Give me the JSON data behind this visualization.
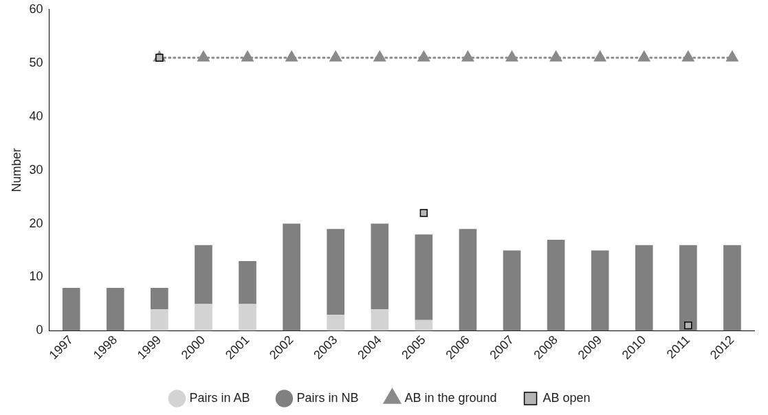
{
  "chart_data": {
    "type": "bar",
    "stacked": true,
    "ylabel": "Number",
    "ylim": [
      0,
      60
    ],
    "yticks": [
      0,
      10,
      20,
      30,
      40,
      50,
      60
    ],
    "grid": false,
    "legend": "bottom",
    "categories": [
      "1997",
      "1998",
      "1999",
      "2000",
      "2001",
      "2002",
      "2003",
      "2004",
      "2005",
      "2006",
      "2007",
      "2008",
      "2009",
      "2010",
      "2011",
      "2012"
    ],
    "series": [
      {
        "name": "Pairs in AB",
        "color": "#d3d3d3",
        "values": [
          0,
          0,
          4,
          5,
          5,
          0,
          3,
          4,
          2,
          0,
          0,
          0,
          0,
          0,
          0,
          0
        ]
      },
      {
        "name": "Pairs in NB",
        "color": "#808080",
        "values": [
          8,
          8,
          4,
          11,
          8,
          20,
          16,
          16,
          16,
          19,
          15,
          17,
          15,
          16,
          16,
          16
        ]
      },
      {
        "name": "AB in the ground",
        "type": "line",
        "color": "#8a8a8a",
        "marker": "triangle",
        "line_style": "dotted",
        "values": [
          null,
          null,
          51,
          51,
          51,
          51,
          51,
          51,
          51,
          51,
          51,
          51,
          51,
          51,
          51,
          51
        ]
      },
      {
        "name": "AB open",
        "type": "scatter",
        "color": "#b4b4b4",
        "marker": "square",
        "values": [
          null,
          null,
          51,
          null,
          null,
          null,
          null,
          null,
          22,
          null,
          null,
          null,
          null,
          null,
          1,
          null
        ]
      }
    ]
  }
}
